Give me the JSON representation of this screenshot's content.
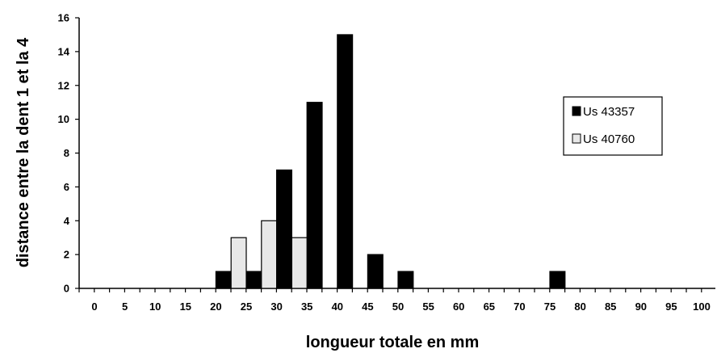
{
  "chart_data": {
    "type": "bar",
    "xlabel": "longueur totale en mm",
    "ylabel": "distance entre la dent 1 et la 4",
    "ylim": [
      0,
      16
    ],
    "y_ticks": [
      "0",
      "2",
      "4",
      "6",
      "8",
      "10",
      "12",
      "14",
      "16"
    ],
    "categories": [
      "0",
      "5",
      "10",
      "15",
      "20",
      "25",
      "30",
      "35",
      "40",
      "45",
      "50",
      "55",
      "60",
      "65",
      "70",
      "75",
      "80",
      "85",
      "90",
      "95",
      "100"
    ],
    "series": [
      {
        "name": "Us 43357",
        "color": "#000000",
        "values": [
          0,
          0,
          0,
          0,
          1,
          1,
          7,
          11,
          15,
          2,
          1,
          0,
          0,
          0,
          0,
          1,
          0,
          0,
          0,
          0,
          0
        ]
      },
      {
        "name": "Us 40760",
        "color": "#e8e8e8",
        "values": [
          0,
          0,
          0,
          0,
          0,
          3,
          4,
          3,
          0,
          0,
          0,
          0,
          0,
          0,
          0,
          0,
          0,
          0,
          0,
          0,
          0
        ]
      }
    ],
    "legend_position": "right",
    "grid": false
  }
}
